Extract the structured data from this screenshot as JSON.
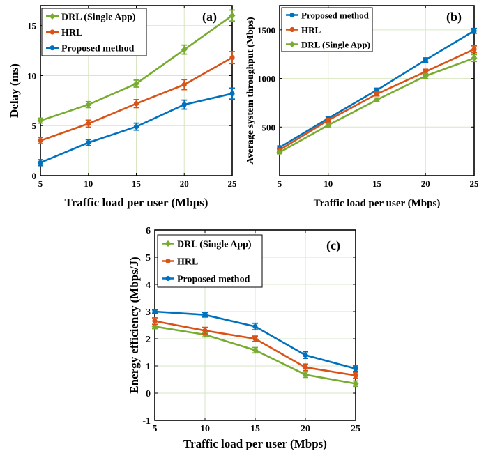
{
  "colors": {
    "green": "#77ac30",
    "orange": "#d95319",
    "blue": "#0072bd",
    "grid": "#d9e6c3",
    "axis": "#000000"
  },
  "chart_data": [
    {
      "type": "line",
      "panel_label": "(a)",
      "xlabel": "Traffic load  per user (Mbps)",
      "ylabel": "Delay (ms)",
      "x": [
        5,
        10,
        15,
        20,
        25
      ],
      "xlim": [
        5,
        25
      ],
      "ylim": [
        0,
        17
      ],
      "xticks": [
        5,
        10,
        15,
        20,
        25
      ],
      "yticks": [
        0,
        5,
        10,
        15
      ],
      "grid": true,
      "legend": "top-left",
      "series": [
        {
          "name": "DRL (Single App)",
          "color": "green",
          "values": [
            5.5,
            7.1,
            9.2,
            12.6,
            16.0
          ],
          "errors": [
            0.25,
            0.3,
            0.35,
            0.45,
            0.55
          ]
        },
        {
          "name": "HRL",
          "color": "orange",
          "values": [
            3.5,
            5.2,
            7.2,
            9.1,
            11.8
          ],
          "errors": [
            0.3,
            0.35,
            0.4,
            0.5,
            0.6
          ]
        },
        {
          "name": "Proposed method",
          "color": "blue",
          "values": [
            1.3,
            3.3,
            4.9,
            7.1,
            8.2
          ],
          "errors": [
            0.3,
            0.3,
            0.35,
            0.45,
            0.55
          ]
        }
      ]
    },
    {
      "type": "line",
      "panel_label": "(b)",
      "xlabel": "Traffic load per user (Mbps)",
      "ylabel": "Average system throughput (Mbps)",
      "x": [
        5,
        10,
        15,
        20,
        25
      ],
      "xlim": [
        5,
        25
      ],
      "ylim": [
        0,
        1750
      ],
      "xticks": [
        5,
        10,
        15,
        20,
        25
      ],
      "yticks": [
        500,
        1000,
        1500
      ],
      "grid": true,
      "legend": "top-left",
      "series": [
        {
          "name": "Proposed method",
          "color": "blue",
          "values": [
            290,
            590,
            880,
            1190,
            1490
          ],
          "errors": [
            15,
            18,
            20,
            22,
            25
          ]
        },
        {
          "name": "HRL",
          "color": "orange",
          "values": [
            265,
            570,
            840,
            1070,
            1300
          ],
          "errors": [
            15,
            18,
            20,
            25,
            35
          ]
        },
        {
          "name": "DRL (Single App)",
          "color": "green",
          "values": [
            240,
            520,
            780,
            1025,
            1210
          ],
          "errors": [
            15,
            18,
            20,
            25,
            35
          ]
        }
      ]
    },
    {
      "type": "line",
      "panel_label": "(c)",
      "xlabel": "Traffic load per user (Mbps)",
      "ylabel": "Energy efficiency (Mbps/J)",
      "x": [
        5,
        10,
        15,
        20,
        25
      ],
      "xlim": [
        5,
        25
      ],
      "ylim": [
        -1,
        6
      ],
      "xticks": [
        5,
        10,
        15,
        20,
        25
      ],
      "yticks": [
        -1,
        0,
        1,
        2,
        3,
        4,
        5,
        6
      ],
      "grid": true,
      "legend": "top-left",
      "series": [
        {
          "name": "DRL (Single App)",
          "color": "green",
          "values": [
            2.45,
            2.15,
            1.58,
            0.68,
            0.35
          ],
          "errors": [
            0.08,
            0.08,
            0.1,
            0.1,
            0.1
          ]
        },
        {
          "name": "HRL",
          "color": "orange",
          "values": [
            2.65,
            2.3,
            2.0,
            0.95,
            0.65
          ],
          "errors": [
            0.12,
            0.12,
            0.1,
            0.12,
            0.1
          ]
        },
        {
          "name": "Proposed method",
          "color": "blue",
          "values": [
            3.0,
            2.88,
            2.45,
            1.4,
            0.9
          ],
          "errors": [
            0.06,
            0.08,
            0.12,
            0.12,
            0.1
          ]
        }
      ]
    }
  ]
}
